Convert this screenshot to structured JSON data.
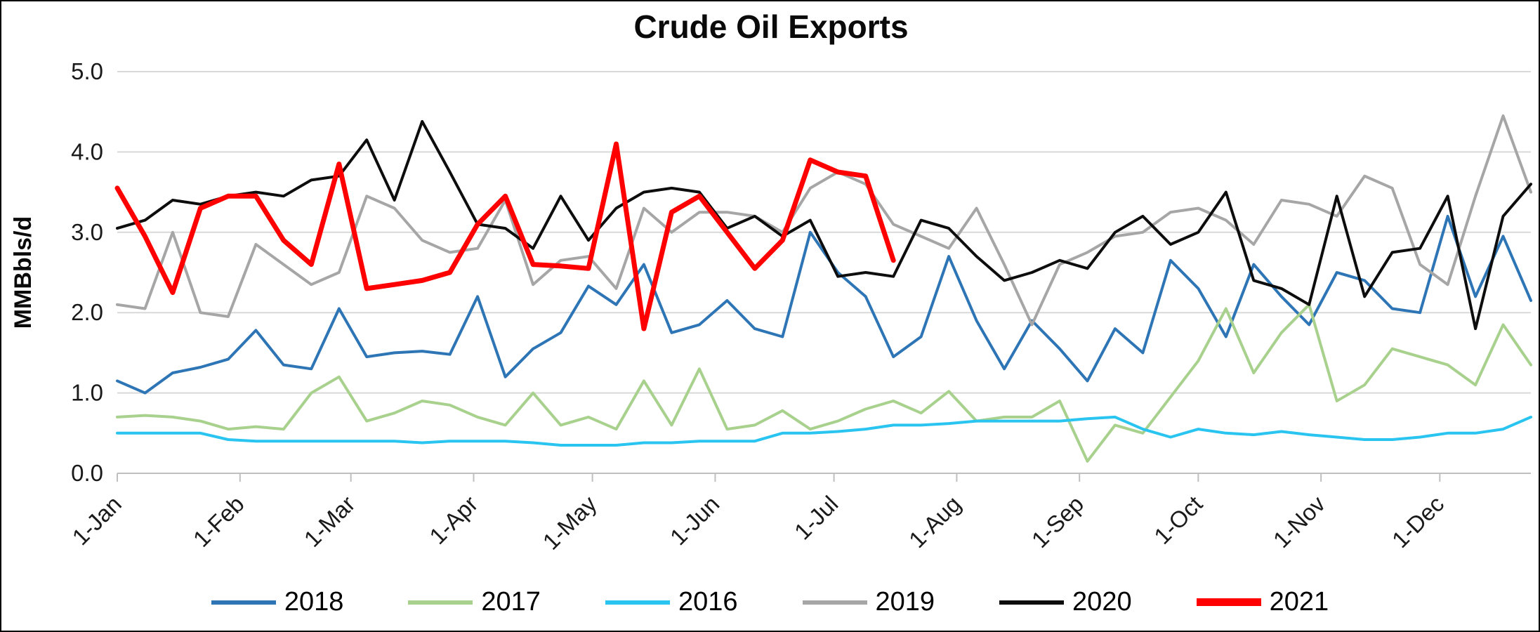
{
  "chart_data": {
    "type": "line",
    "title": "Crude Oil Exports",
    "xlabel": "",
    "ylabel": "MMBbls/d",
    "ylim": [
      0,
      5
    ],
    "y_ticks": [
      "0.0",
      "1.0",
      "2.0",
      "3.0",
      "4.0",
      "5.0"
    ],
    "grid": "horizontal",
    "legend_position": "bottom",
    "sample_interval_days": 7,
    "x_total_days": 357,
    "x_ticks": [
      {
        "label": "1-Jan",
        "day": 0
      },
      {
        "label": "1-Feb",
        "day": 31
      },
      {
        "label": "1-Mar",
        "day": 59
      },
      {
        "label": "1-Apr",
        "day": 90
      },
      {
        "label": "1-May",
        "day": 120
      },
      {
        "label": "1-Jun",
        "day": 151
      },
      {
        "label": "1-Jul",
        "day": 181
      },
      {
        "label": "1-Aug",
        "day": 212
      },
      {
        "label": "1-Sep",
        "day": 243
      },
      {
        "label": "1-Oct",
        "day": 273
      },
      {
        "label": "1-Nov",
        "day": 304
      },
      {
        "label": "1-Dec",
        "day": 334
      }
    ],
    "series": [
      {
        "name": "2018",
        "color": "#2E75B6",
        "width": 4,
        "values": [
          1.15,
          1.0,
          1.25,
          1.32,
          1.42,
          1.78,
          1.35,
          1.3,
          2.05,
          1.45,
          1.5,
          1.52,
          1.48,
          2.2,
          1.2,
          1.55,
          1.75,
          2.33,
          2.1,
          2.6,
          1.75,
          1.85,
          2.15,
          1.8,
          1.7,
          3.0,
          2.5,
          2.2,
          1.45,
          1.7,
          2.7,
          1.9,
          1.3,
          1.9,
          1.55,
          1.15,
          1.8,
          1.5,
          2.65,
          2.3,
          1.7,
          2.6,
          2.2,
          1.85,
          2.5,
          2.4,
          2.05,
          2.0,
          3.2,
          2.2,
          2.95,
          2.15
        ]
      },
      {
        "name": "2017",
        "color": "#A9D18E",
        "width": 4,
        "values": [
          0.7,
          0.72,
          0.7,
          0.65,
          0.55,
          0.58,
          0.55,
          1.0,
          1.2,
          0.65,
          0.75,
          0.9,
          0.85,
          0.7,
          0.6,
          1.0,
          0.6,
          0.7,
          0.55,
          1.15,
          0.6,
          1.3,
          0.55,
          0.6,
          0.78,
          0.55,
          0.65,
          0.8,
          0.9,
          0.75,
          1.02,
          0.65,
          0.7,
          0.7,
          0.9,
          0.15,
          0.6,
          0.5,
          0.95,
          1.4,
          2.05,
          1.25,
          1.75,
          2.1,
          0.9,
          1.1,
          1.55,
          1.45,
          1.35,
          1.1,
          1.85,
          1.35
        ]
      },
      {
        "name": "2016",
        "color": "#29C4F0",
        "width": 4,
        "values": [
          0.5,
          0.5,
          0.5,
          0.5,
          0.42,
          0.4,
          0.4,
          0.4,
          0.4,
          0.4,
          0.4,
          0.38,
          0.4,
          0.4,
          0.4,
          0.38,
          0.35,
          0.35,
          0.35,
          0.38,
          0.38,
          0.4,
          0.4,
          0.4,
          0.5,
          0.5,
          0.52,
          0.55,
          0.6,
          0.6,
          0.62,
          0.65,
          0.65,
          0.65,
          0.65,
          0.68,
          0.7,
          0.55,
          0.45,
          0.55,
          0.5,
          0.48,
          0.52,
          0.48,
          0.45,
          0.42,
          0.42,
          0.45,
          0.5,
          0.5,
          0.55,
          0.7
        ]
      },
      {
        "name": "2019",
        "color": "#A6A6A6",
        "width": 4,
        "values": [
          2.1,
          2.05,
          3.0,
          2.0,
          1.95,
          2.85,
          2.6,
          2.35,
          2.5,
          3.45,
          3.3,
          2.9,
          2.75,
          2.8,
          3.4,
          2.35,
          2.65,
          2.7,
          2.3,
          3.3,
          3.0,
          3.25,
          3.25,
          3.2,
          3.0,
          3.55,
          3.75,
          3.6,
          3.1,
          2.95,
          2.8,
          3.3,
          2.6,
          1.85,
          2.6,
          2.75,
          2.95,
          3.0,
          3.25,
          3.3,
          3.15,
          2.85,
          3.4,
          3.35,
          3.2,
          3.7,
          3.55,
          2.6,
          2.35,
          3.45,
          4.45,
          3.5
        ]
      },
      {
        "name": "2020",
        "color": "#0D0D0D",
        "width": 4,
        "values": [
          3.05,
          3.15,
          3.4,
          3.35,
          3.45,
          3.5,
          3.45,
          3.65,
          3.7,
          4.15,
          3.4,
          4.38,
          3.75,
          3.1,
          3.05,
          2.8,
          3.45,
          2.9,
          3.3,
          3.5,
          3.55,
          3.5,
          3.05,
          3.2,
          2.95,
          3.15,
          2.45,
          2.5,
          2.45,
          3.15,
          3.05,
          2.7,
          2.4,
          2.5,
          2.65,
          2.55,
          3.0,
          3.2,
          2.85,
          3.0,
          3.5,
          2.4,
          2.3,
          2.1,
          3.45,
          2.2,
          2.75,
          2.8,
          3.45,
          1.8,
          3.2,
          3.6
        ]
      },
      {
        "name": "2021",
        "color": "#FF0000",
        "width": 7,
        "values": [
          3.55,
          2.95,
          2.25,
          3.3,
          3.45,
          3.45,
          2.9,
          2.6,
          3.85,
          2.3,
          2.35,
          2.4,
          2.5,
          3.1,
          3.45,
          2.6,
          2.58,
          2.55,
          4.1,
          1.8,
          3.25,
          3.45,
          3.0,
          2.55,
          2.9,
          3.9,
          3.75,
          3.7,
          2.65
        ]
      }
    ]
  }
}
